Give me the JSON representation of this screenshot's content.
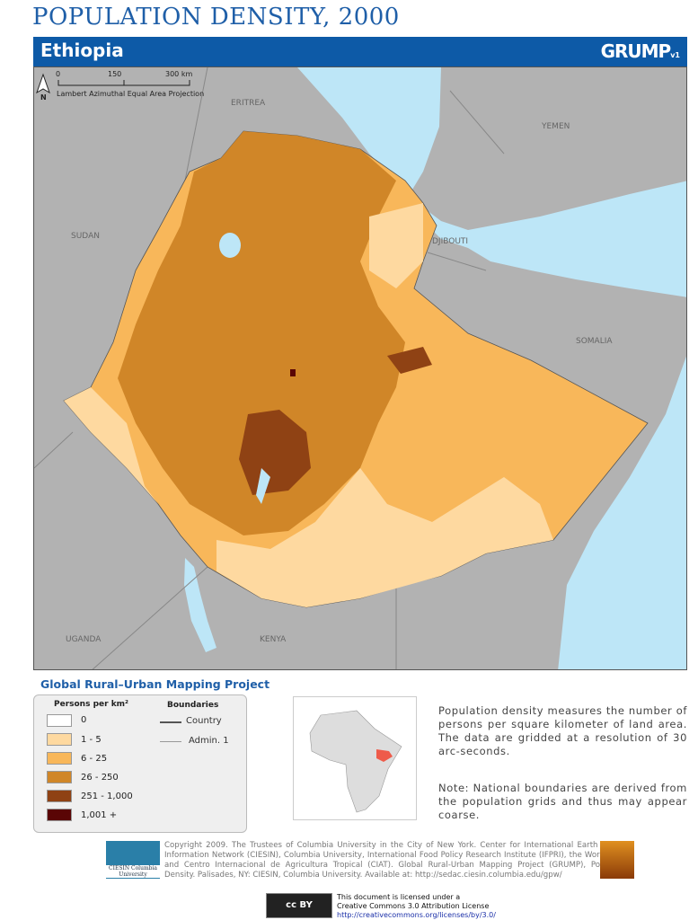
{
  "title": "POPULATION DENSITY, 2000",
  "country": "Ethiopia",
  "brand": "GRUMP",
  "brand_version": "v1",
  "scale": {
    "ticks": [
      "0",
      "150",
      "300 km"
    ],
    "north": "N",
    "projection": "Lambert Azimuthal Equal Area Projection"
  },
  "neighbors": [
    "ERITREA",
    "YEMEN",
    "SUDAN",
    "DJIBOUTI",
    "SOMALIA",
    "UGANDA",
    "KENYA"
  ],
  "project": "Global Rural–Urban Mapping Project",
  "legend": {
    "density_title": "Persons per km²",
    "classes": [
      {
        "label": "0",
        "color": "#ffffff"
      },
      {
        "label": "1 - 5",
        "color": "#fed9a0"
      },
      {
        "label": "6 - 25",
        "color": "#f8b75a"
      },
      {
        "label": "26 - 250",
        "color": "#d08628"
      },
      {
        "label": "251 - 1,000",
        "color": "#8f4214"
      },
      {
        "label": "1,001 +",
        "color": "#5a0505"
      }
    ],
    "boundaries_title": "Boundaries",
    "boundaries": [
      "Country",
      "Admin. 1"
    ]
  },
  "description": "Population density measures the number of persons per square kilometer of land area. The data are gridded at a resolution of 30 arc-seconds.",
  "note": "Note: National boundaries are derived from the population grids and thus may appear coarse.",
  "copyright": "Copyright 2009. The Trustees of Columbia University in the City of New York. Center for International Earth Science Information Network (CIESIN), Columbia University, International Food Policy Research Institute (IFPRI), the World Bank, and Centro Internacional de Agricultura Tropical (CIAT). Global Rural-Urban Mapping Project (GRUMP), Population Density. Palisades, NY: CIESIN, Columbia University. Available at: http://sedac.ciesin.columbia.edu/gpw/",
  "ciesin_logo": "CIESIN Columbia University",
  "sedac_logo": "SEDAC",
  "license": {
    "line1": "This document is licensed under a",
    "line2": "Creative Commons 3.0 Attribution License",
    "url": "http://creativecommons.org/licenses/by/3.0/",
    "badge": "cc BY"
  },
  "colors": {
    "accent": "#0d5aa7",
    "land": "#b2b2b2",
    "water": "#bde6f7"
  }
}
